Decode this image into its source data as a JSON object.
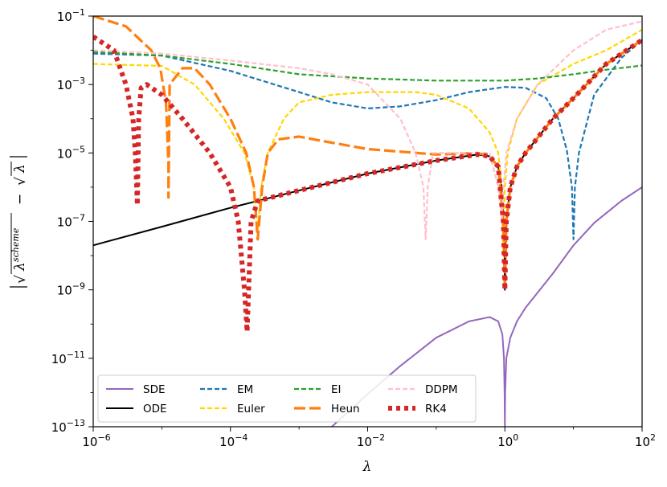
{
  "chart_data": {
    "type": "line",
    "xscale": "log",
    "yscale": "log",
    "xlim": [
      1e-06,
      100
    ],
    "ylim": [
      1e-13,
      0.1
    ],
    "xlabel": "λ",
    "ylabel_parts": {
      "base": "√",
      "lambda": "λ",
      "scheme": "scheme",
      "minus": "−"
    },
    "xticks": [
      {
        "value": 1e-06,
        "base": "10",
        "exp": "−6"
      },
      {
        "value": 0.0001,
        "base": "10",
        "exp": "−4"
      },
      {
        "value": 0.01,
        "base": "10",
        "exp": "−2"
      },
      {
        "value": 1,
        "base": "10",
        "exp": "0"
      },
      {
        "value": 100,
        "base": "10",
        "exp": "2"
      }
    ],
    "yticks": [
      {
        "value": 1e-13,
        "base": "10",
        "exp": "−13"
      },
      {
        "value": 1e-11,
        "base": "10",
        "exp": "−11"
      },
      {
        "value": 1e-09,
        "base": "10",
        "exp": "−9"
      },
      {
        "value": 1e-07,
        "base": "10",
        "exp": "−7"
      },
      {
        "value": 1e-05,
        "base": "10",
        "exp": "−5"
      },
      {
        "value": 0.001,
        "base": "10",
        "exp": "−3"
      },
      {
        "value": 0.1,
        "base": "10",
        "exp": "−1"
      }
    ],
    "series": [
      {
        "name": "SDE",
        "color": "#9467bd",
        "style": "solid",
        "points": [
          [
            0.003,
            1e-13
          ],
          [
            0.01,
            9e-13
          ],
          [
            0.03,
            6e-12
          ],
          [
            0.1,
            4e-11
          ],
          [
            0.3,
            1.2e-10
          ],
          [
            0.6,
            1.6e-10
          ],
          [
            0.8,
            1.2e-10
          ],
          [
            0.92,
            5e-11
          ],
          [
            0.97,
            1e-11
          ],
          [
            0.99,
            1e-12
          ],
          [
            1.0,
            1e-13
          ],
          [
            1.01,
            1e-12
          ],
          [
            1.05,
            1e-11
          ],
          [
            1.2,
            4e-11
          ],
          [
            1.5,
            1.2e-10
          ],
          [
            2,
            3e-10
          ],
          [
            5,
            3e-09
          ],
          [
            10,
            2e-08
          ],
          [
            20,
            9e-08
          ],
          [
            50,
            4e-07
          ],
          [
            100,
            1e-06
          ]
        ]
      },
      {
        "name": "ODE",
        "color": "#000000",
        "style": "solid",
        "points": [
          [
            1e-06,
            2e-08
          ],
          [
            1e-05,
            7e-08
          ],
          [
            0.0001,
            2.5e-07
          ],
          [
            0.001,
            8e-07
          ],
          [
            0.01,
            2.5e-06
          ],
          [
            0.1,
            6e-06
          ],
          [
            0.4,
            9e-06
          ],
          [
            0.6,
            8e-06
          ],
          [
            0.8,
            4e-06
          ],
          [
            0.9,
            1e-06
          ],
          [
            0.96,
            1e-07
          ],
          [
            0.99,
            1.2e-08
          ],
          [
            1.0,
            1e-09
          ],
          [
            1.02,
            2e-08
          ],
          [
            1.05,
            1e-07
          ],
          [
            1.2,
            1e-06
          ],
          [
            1.5,
            4e-06
          ],
          [
            2,
            1e-05
          ],
          [
            5,
            0.0001
          ],
          [
            10,
            0.0004
          ],
          [
            30,
            0.004
          ],
          [
            100,
            0.02
          ]
        ]
      },
      {
        "name": "EM",
        "color": "#1f77b4",
        "style": "dash",
        "points": [
          [
            1e-06,
            0.008
          ],
          [
            1e-05,
            0.007
          ],
          [
            0.0001,
            0.0025
          ],
          [
            0.001,
            0.0006
          ],
          [
            0.003,
            0.0003
          ],
          [
            0.01,
            0.0002
          ],
          [
            0.03,
            0.00023
          ],
          [
            0.1,
            0.00035
          ],
          [
            0.3,
            0.0006
          ],
          [
            1,
            0.00085
          ],
          [
            2,
            0.0008
          ],
          [
            4,
            0.0004
          ],
          [
            6,
            0.0001
          ],
          [
            8,
            1.2e-05
          ],
          [
            9.5,
            1e-06
          ],
          [
            10,
            3e-08
          ],
          [
            10.5,
            1e-06
          ],
          [
            12,
            1e-05
          ],
          [
            20,
            0.0005
          ],
          [
            50,
            0.006
          ],
          [
            100,
            0.02
          ]
        ]
      },
      {
        "name": "Euler",
        "color": "#ffd700",
        "style": "dash",
        "points": [
          [
            1e-06,
            0.004
          ],
          [
            1e-05,
            0.0035
          ],
          [
            3e-05,
            0.001
          ],
          [
            8e-05,
            0.0001
          ],
          [
            0.00016,
            1e-05
          ],
          [
            0.00022,
            1e-06
          ],
          [
            0.00025,
            5e-08
          ],
          [
            0.00028,
            1e-06
          ],
          [
            0.00035,
            1e-05
          ],
          [
            0.0006,
            0.0001
          ],
          [
            0.001,
            0.0003
          ],
          [
            0.003,
            0.0005
          ],
          [
            0.01,
            0.0006
          ],
          [
            0.05,
            0.0006
          ],
          [
            0.1,
            0.0005
          ],
          [
            0.3,
            0.0002
          ],
          [
            0.6,
            4e-05
          ],
          [
            0.8,
            1e-05
          ],
          [
            0.9,
            1e-06
          ],
          [
            0.95,
            1e-08
          ],
          [
            1.0,
            1e-06
          ],
          [
            1.1,
            1e-05
          ],
          [
            1.5,
            0.0001
          ],
          [
            3,
            0.001
          ],
          [
            10,
            0.004
          ],
          [
            30,
            0.01
          ],
          [
            100,
            0.04
          ]
        ]
      },
      {
        "name": "EI",
        "color": "#2ca02c",
        "style": "dash",
        "points": [
          [
            1e-06,
            0.009
          ],
          [
            1e-05,
            0.007
          ],
          [
            0.0001,
            0.004
          ],
          [
            0.001,
            0.002
          ],
          [
            0.01,
            0.0015
          ],
          [
            0.1,
            0.0013
          ],
          [
            1,
            0.0013
          ],
          [
            3,
            0.0015
          ],
          [
            10,
            0.002
          ],
          [
            30,
            0.0027
          ],
          [
            100,
            0.0036
          ]
        ]
      },
      {
        "name": "Heun",
        "color": "#ff7f0e",
        "style": "longdash",
        "points": [
          [
            1e-06,
            0.1
          ],
          [
            3e-06,
            0.05
          ],
          [
            7e-06,
            0.01
          ],
          [
            9.5e-06,
            0.003
          ],
          [
            1.15e-05,
            0.0003
          ],
          [
            1.25e-05,
            5e-06
          ],
          [
            1.25e-05,
            5e-07
          ],
          [
            1.3e-05,
            0.001
          ],
          [
            2e-05,
            0.003
          ],
          [
            3e-05,
            0.003
          ],
          [
            5e-05,
            0.001
          ],
          [
            0.0001,
            0.0001
          ],
          [
            0.00017,
            1e-05
          ],
          [
            0.00022,
            1e-06
          ],
          [
            0.00025,
            3e-08
          ],
          [
            0.00029,
            1e-06
          ],
          [
            0.00035,
            1e-05
          ],
          [
            0.0005,
            2.5e-05
          ],
          [
            0.001,
            3e-05
          ],
          [
            0.003,
            2e-05
          ],
          [
            0.01,
            1.3e-05
          ],
          [
            0.1,
            9e-06
          ],
          [
            0.4,
            1e-05
          ],
          [
            0.6,
            8e-06
          ],
          [
            0.8,
            4e-06
          ],
          [
            0.95,
            1e-07
          ],
          [
            1.0,
            1e-09
          ],
          [
            1.05,
            1e-07
          ],
          [
            1.2,
            1e-06
          ],
          [
            1.5,
            4e-06
          ],
          [
            2,
            1e-05
          ],
          [
            5,
            0.0001
          ],
          [
            10,
            0.0004
          ],
          [
            30,
            0.004
          ],
          [
            100,
            0.02
          ]
        ]
      },
      {
        "name": "DDPM",
        "color": "#ffc0cb",
        "style": "dash",
        "points": [
          [
            1e-06,
            0.01
          ],
          [
            1e-05,
            0.008
          ],
          [
            0.0001,
            0.005
          ],
          [
            0.001,
            0.003
          ],
          [
            0.003,
            0.002
          ],
          [
            0.01,
            0.001
          ],
          [
            0.03,
            0.0001
          ],
          [
            0.05,
            1e-05
          ],
          [
            0.065,
            1e-06
          ],
          [
            0.07,
            3e-08
          ],
          [
            0.075,
            1e-06
          ],
          [
            0.09,
            1e-05
          ],
          [
            0.15,
            1e-05
          ],
          [
            0.3,
            1e-05
          ],
          [
            0.6,
            1e-05
          ],
          [
            0.8,
            1e-06
          ],
          [
            0.9,
            1e-07
          ],
          [
            0.95,
            1e-06
          ],
          [
            1.05,
            1e-05
          ],
          [
            1.5,
            0.0001
          ],
          [
            3,
            0.001
          ],
          [
            10,
            0.01
          ],
          [
            30,
            0.04
          ],
          [
            100,
            0.07
          ]
        ]
      },
      {
        "name": "RK4",
        "color": "#d62728",
        "style": "dot",
        "points": [
          [
            1e-06,
            0.025
          ],
          [
            2e-06,
            0.01
          ],
          [
            3e-06,
            0.001
          ],
          [
            3.8e-06,
            0.0001
          ],
          [
            4.1e-06,
            1e-05
          ],
          [
            4.3e-06,
            1e-06
          ],
          [
            4.4e-06,
            3e-07
          ],
          [
            4.6e-06,
            0.0001
          ],
          [
            5e-06,
            0.0008
          ],
          [
            6e-06,
            0.001
          ],
          [
            1e-05,
            0.0005
          ],
          [
            2e-05,
            0.0001
          ],
          [
            5e-05,
            1e-05
          ],
          [
            0.0001,
            1e-06
          ],
          [
            0.00013,
            1e-07
          ],
          [
            0.00016,
            1e-09
          ],
          [
            0.000175,
            6e-11
          ],
          [
            0.0002,
            1e-07
          ],
          [
            0.00025,
            4e-07
          ],
          [
            0.001,
            8e-07
          ],
          [
            0.01,
            2.5e-06
          ],
          [
            0.1,
            6e-06
          ],
          [
            0.4,
            9e-06
          ],
          [
            0.6,
            8e-06
          ],
          [
            0.8,
            4e-06
          ],
          [
            0.95,
            1e-07
          ],
          [
            1.0,
            1e-09
          ],
          [
            1.05,
            1e-07
          ],
          [
            1.2,
            1e-06
          ],
          [
            1.5,
            4e-06
          ],
          [
            2,
            1e-05
          ],
          [
            5,
            0.0001
          ],
          [
            10,
            0.0004
          ],
          [
            30,
            0.004
          ],
          [
            100,
            0.02
          ]
        ]
      }
    ],
    "legend": {
      "placement": "lower-left",
      "columns": 4,
      "entries": [
        "SDE",
        "EM",
        "EI",
        "DDPM",
        "ODE",
        "Euler",
        "Heun",
        "RK4"
      ]
    }
  }
}
